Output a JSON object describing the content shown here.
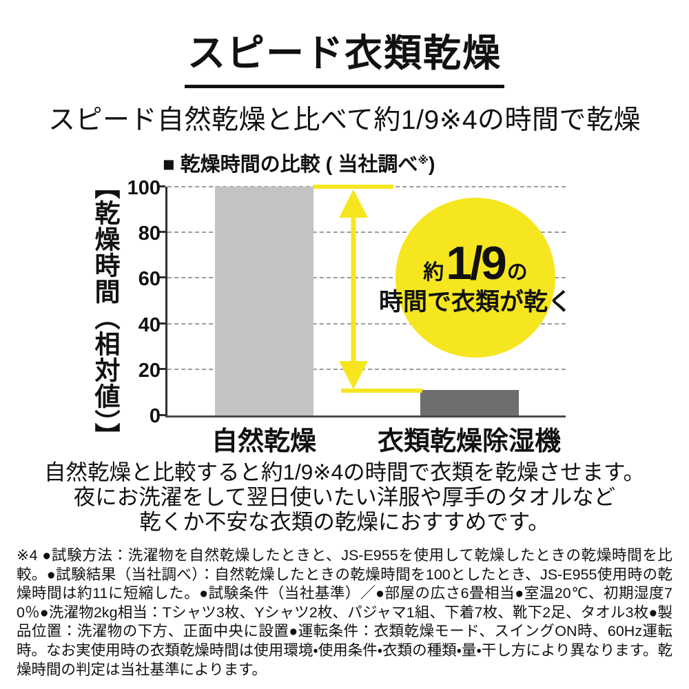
{
  "page": {
    "title": "スピード衣類乾燥",
    "subtitle": "スピード自然乾燥と比べて約1/9※4の時間で乾燥",
    "body_lines": [
      "自然乾燥と比較すると約1/9※4の時間で衣類を乾燥させます。",
      "夜にお洗濯をして翌日使いたい洋服や厚手のタオルなど",
      "乾くか不安な衣類の乾燥におすすめです。"
    ],
    "footnote": "※4 ●試験方法：洗濯物を自然乾燥したときと、JS-E955を使用して乾燥したときの乾燥時間を比較。●試験結果（当社調べ）：自然乾燥したときの乾燥時間を100としたとき、JS-E955使用時の乾燥時間は約11に短縮した。●試験条件（当社基準）／●部屋の広さ6畳相当●室温20℃、初期湿度70％●洗濯物2kg相当：Tシャツ3枚、Yシャツ2枚、パジャマ1組、下着7枚、靴下2足、タオル3枚●製品位置：洗濯物の下方、正面中央に設置●運転条件：衣類乾燥モード、スイングON時、60Hz運転時。なお実使用時の衣類乾燥時間は使用環境・使用条件・衣類の種類・量・干し方により異なります。乾燥時間の判定は当社基準によります。"
  },
  "colors": {
    "accent_yellow": "#f6e620",
    "bar_light": "#c3c3c3",
    "bar_dark": "#6e6e6e",
    "gridline": "#9b9b9b",
    "axis": "#2f2f2f",
    "text": "#111111"
  },
  "chart_data": {
    "type": "bar",
    "title": "■ 乾燥時間の比較（当社調べ※）",
    "title_prefix": "■ 乾燥時間の比較 ( 当社調べ",
    "title_sup": "※",
    "title_suffix": ")",
    "ylabel": "【乾燥時間（相対値）】",
    "categories": [
      "自然乾燥",
      "衣類乾燥除湿機"
    ],
    "values": [
      100,
      11
    ],
    "bar_colors": [
      "#c3c3c3",
      "#6e6e6e"
    ],
    "yticks": [
      100,
      80,
      60,
      40,
      20,
      0
    ],
    "ylim": [
      0,
      100
    ],
    "grid": "horizontal dashed lines at 20,40,60,80,100",
    "legend": "none",
    "annotation": {
      "arrow": "yellow double-headed vertical arrow spanning from value 100 down to value 11",
      "circle_line1_pre": "約",
      "circle_line1_big": "1/9",
      "circle_line1_post": "の",
      "circle_line2": "時間で衣類が乾く"
    }
  }
}
